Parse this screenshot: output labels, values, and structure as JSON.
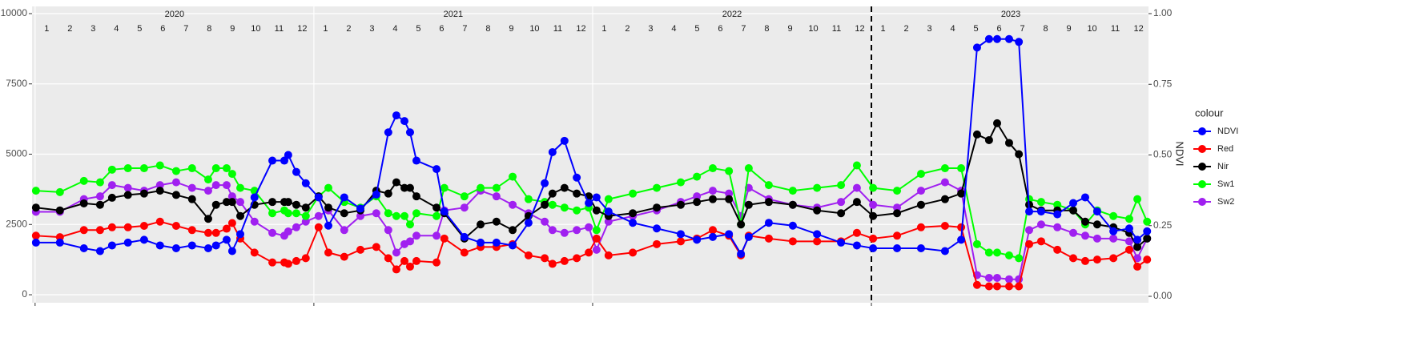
{
  "chart_data": {
    "type": "line",
    "year_labels": [
      "2020",
      "2021",
      "2022",
      "2023"
    ],
    "month_labels": [
      "1",
      "2",
      "3",
      "4",
      "5",
      "6",
      "7",
      "8",
      "9",
      "10",
      "11",
      "12"
    ],
    "y2label": "NDVI",
    "legend_title": "colour",
    "legend_position": "right",
    "grid": true,
    "vline": 2023,
    "xlim": [
      2019.989,
      2023.994
    ],
    "xticks": [
      2020,
      2021,
      2022,
      2023
    ],
    "ylim": [
      -284,
      10256
    ],
    "yticks": [
      0,
      2500,
      5000,
      7500,
      10000
    ],
    "y2lim": [
      -0.0227,
      1.0255
    ],
    "y2ticks": [
      {
        "value": 0,
        "label": "0.00"
      },
      {
        "value": 0.25,
        "label": "0.25"
      },
      {
        "value": 0.5,
        "label": "0.50"
      },
      {
        "value": 0.75,
        "label": "0.75"
      },
      {
        "value": 1,
        "label": "1.00"
      }
    ],
    "x": [
      2020.003,
      2020.089,
      2020.175,
      2020.233,
      2020.276,
      2020.333,
      2020.391,
      2020.448,
      2020.506,
      2020.563,
      2020.621,
      2020.649,
      2020.687,
      2020.707,
      2020.736,
      2020.787,
      2020.851,
      2020.894,
      2020.908,
      2020.937,
      2020.971,
      2021.017,
      2021.052,
      2021.109,
      2021.167,
      2021.224,
      2021.267,
      2021.296,
      2021.325,
      2021.345,
      2021.368,
      2021.44,
      2021.468,
      2021.54,
      2021.598,
      2021.655,
      2021.713,
      2021.77,
      2021.828,
      2021.856,
      2021.899,
      2021.943,
      2021.986,
      2022.014,
      2022.057,
      2022.144,
      2022.23,
      2022.316,
      2022.374,
      2022.431,
      2022.489,
      2022.532,
      2022.56,
      2022.632,
      2022.718,
      2022.805,
      2022.891,
      2022.948,
      2023.006,
      2023.092,
      2023.178,
      2023.264,
      2023.322,
      2023.379,
      2023.422,
      2023.451,
      2023.494,
      2023.529,
      2023.566,
      2023.609,
      2023.667,
      2023.724,
      2023.767,
      2023.81,
      2023.868,
      2023.925,
      2023.954,
      2023.989
    ],
    "series": [
      {
        "name": "NDVI",
        "color": "#0000ff",
        "axis": "y2",
        "values": [
          0.19,
          0.19,
          0.17,
          0.16,
          0.18,
          0.19,
          0.2,
          0.18,
          0.17,
          0.18,
          0.17,
          0.18,
          0.2,
          0.16,
          0.22,
          0.35,
          0.48,
          0.48,
          0.5,
          0.44,
          0.4,
          0.35,
          0.25,
          0.35,
          0.31,
          0.36,
          0.58,
          0.64,
          0.62,
          0.58,
          0.48,
          0.45,
          0.3,
          0.21,
          0.19,
          0.19,
          0.18,
          0.26,
          0.4,
          0.51,
          0.55,
          0.42,
          0.33,
          0.35,
          0.3,
          0.26,
          0.24,
          0.22,
          0.2,
          0.21,
          0.22,
          0.15,
          0.21,
          0.26,
          0.25,
          0.22,
          0.19,
          0.18,
          0.17,
          0.17,
          0.17,
          0.16,
          0.2,
          0.88,
          0.91,
          0.91,
          0.91,
          0.9,
          0.3,
          0.3,
          0.29,
          0.33,
          0.35,
          0.3,
          0.23,
          0.24,
          0.2,
          0.23
        ]
      },
      {
        "name": "Red",
        "color": "#ff0000",
        "values": [
          2100,
          2050,
          2300,
          2300,
          2400,
          2400,
          2450,
          2600,
          2450,
          2300,
          2200,
          2200,
          2350,
          2550,
          2000,
          1500,
          1150,
          1150,
          1100,
          1200,
          1300,
          2400,
          1500,
          1350,
          1600,
          1700,
          1300,
          900,
          1200,
          1000,
          1200,
          1150,
          2000,
          1500,
          1700,
          1700,
          1800,
          1400,
          1300,
          1100,
          1200,
          1300,
          1500,
          2000,
          1400,
          1500,
          1800,
          1900,
          2000,
          2300,
          2100,
          1400,
          2100,
          2000,
          1900,
          1900,
          1900,
          2200,
          2000,
          2100,
          2400,
          2450,
          2400,
          350,
          300,
          300,
          300,
          300,
          1800,
          1900,
          1600,
          1300,
          1200,
          1250,
          1300,
          1600,
          1000,
          1250
        ]
      },
      {
        "name": "Nir",
        "color": "#000000",
        "values": [
          3100,
          3000,
          3250,
          3200,
          3450,
          3550,
          3600,
          3700,
          3550,
          3400,
          2700,
          3200,
          3300,
          3300,
          2800,
          3200,
          3300,
          3300,
          3300,
          3200,
          3100,
          3500,
          3100,
          2900,
          3000,
          3700,
          3600,
          4000,
          3800,
          3800,
          3500,
          3100,
          2900,
          2000,
          2500,
          2600,
          2300,
          2800,
          3200,
          3600,
          3800,
          3600,
          3500,
          3000,
          2800,
          2900,
          3100,
          3200,
          3300,
          3400,
          3400,
          2500,
          3200,
          3300,
          3200,
          3000,
          2900,
          3300,
          2800,
          2900,
          3200,
          3400,
          3600,
          5700,
          5500,
          6100,
          5400,
          5000,
          3200,
          3000,
          3000,
          3000,
          2600,
          2500,
          2400,
          2200,
          1700,
          2000
        ]
      },
      {
        "name": "Sw1",
        "color": "#00ff00",
        "values": [
          3700,
          3650,
          4050,
          4000,
          4450,
          4500,
          4500,
          4600,
          4400,
          4500,
          4100,
          4500,
          4500,
          4300,
          3800,
          3700,
          2900,
          3000,
          2900,
          2900,
          2800,
          3500,
          3800,
          3300,
          3100,
          3500,
          2900,
          2800,
          2800,
          2500,
          2900,
          2800,
          3800,
          3500,
          3800,
          3800,
          4200,
          3400,
          3300,
          3200,
          3100,
          3000,
          3100,
          2300,
          3400,
          3600,
          3800,
          4000,
          4200,
          4500,
          4400,
          2500,
          4500,
          3900,
          3700,
          3800,
          3900,
          4600,
          3800,
          3700,
          4300,
          4500,
          4500,
          1800,
          1500,
          1500,
          1400,
          1300,
          3400,
          3300,
          3200,
          3000,
          2500,
          3000,
          2800,
          2700,
          3400,
          2600
        ]
      },
      {
        "name": "Sw2",
        "color": "#a020f0",
        "values": [
          2950,
          2950,
          3400,
          3500,
          3900,
          3800,
          3700,
          3900,
          4000,
          3800,
          3700,
          3900,
          3900,
          3500,
          3300,
          2600,
          2200,
          2100,
          2250,
          2400,
          2600,
          2800,
          3000,
          2300,
          2800,
          2900,
          2300,
          1500,
          1800,
          1900,
          2100,
          2100,
          3000,
          3100,
          3700,
          3500,
          3200,
          2900,
          2600,
          2300,
          2200,
          2300,
          2400,
          1600,
          2600,
          2800,
          3000,
          3300,
          3500,
          3700,
          3600,
          2800,
          3800,
          3400,
          3200,
          3100,
          3300,
          3800,
          3200,
          3100,
          3700,
          4000,
          3700,
          700,
          600,
          600,
          550,
          550,
          2300,
          2500,
          2400,
          2200,
          2100,
          2000,
          2000,
          1900,
          1300,
          2000
        ]
      }
    ]
  }
}
